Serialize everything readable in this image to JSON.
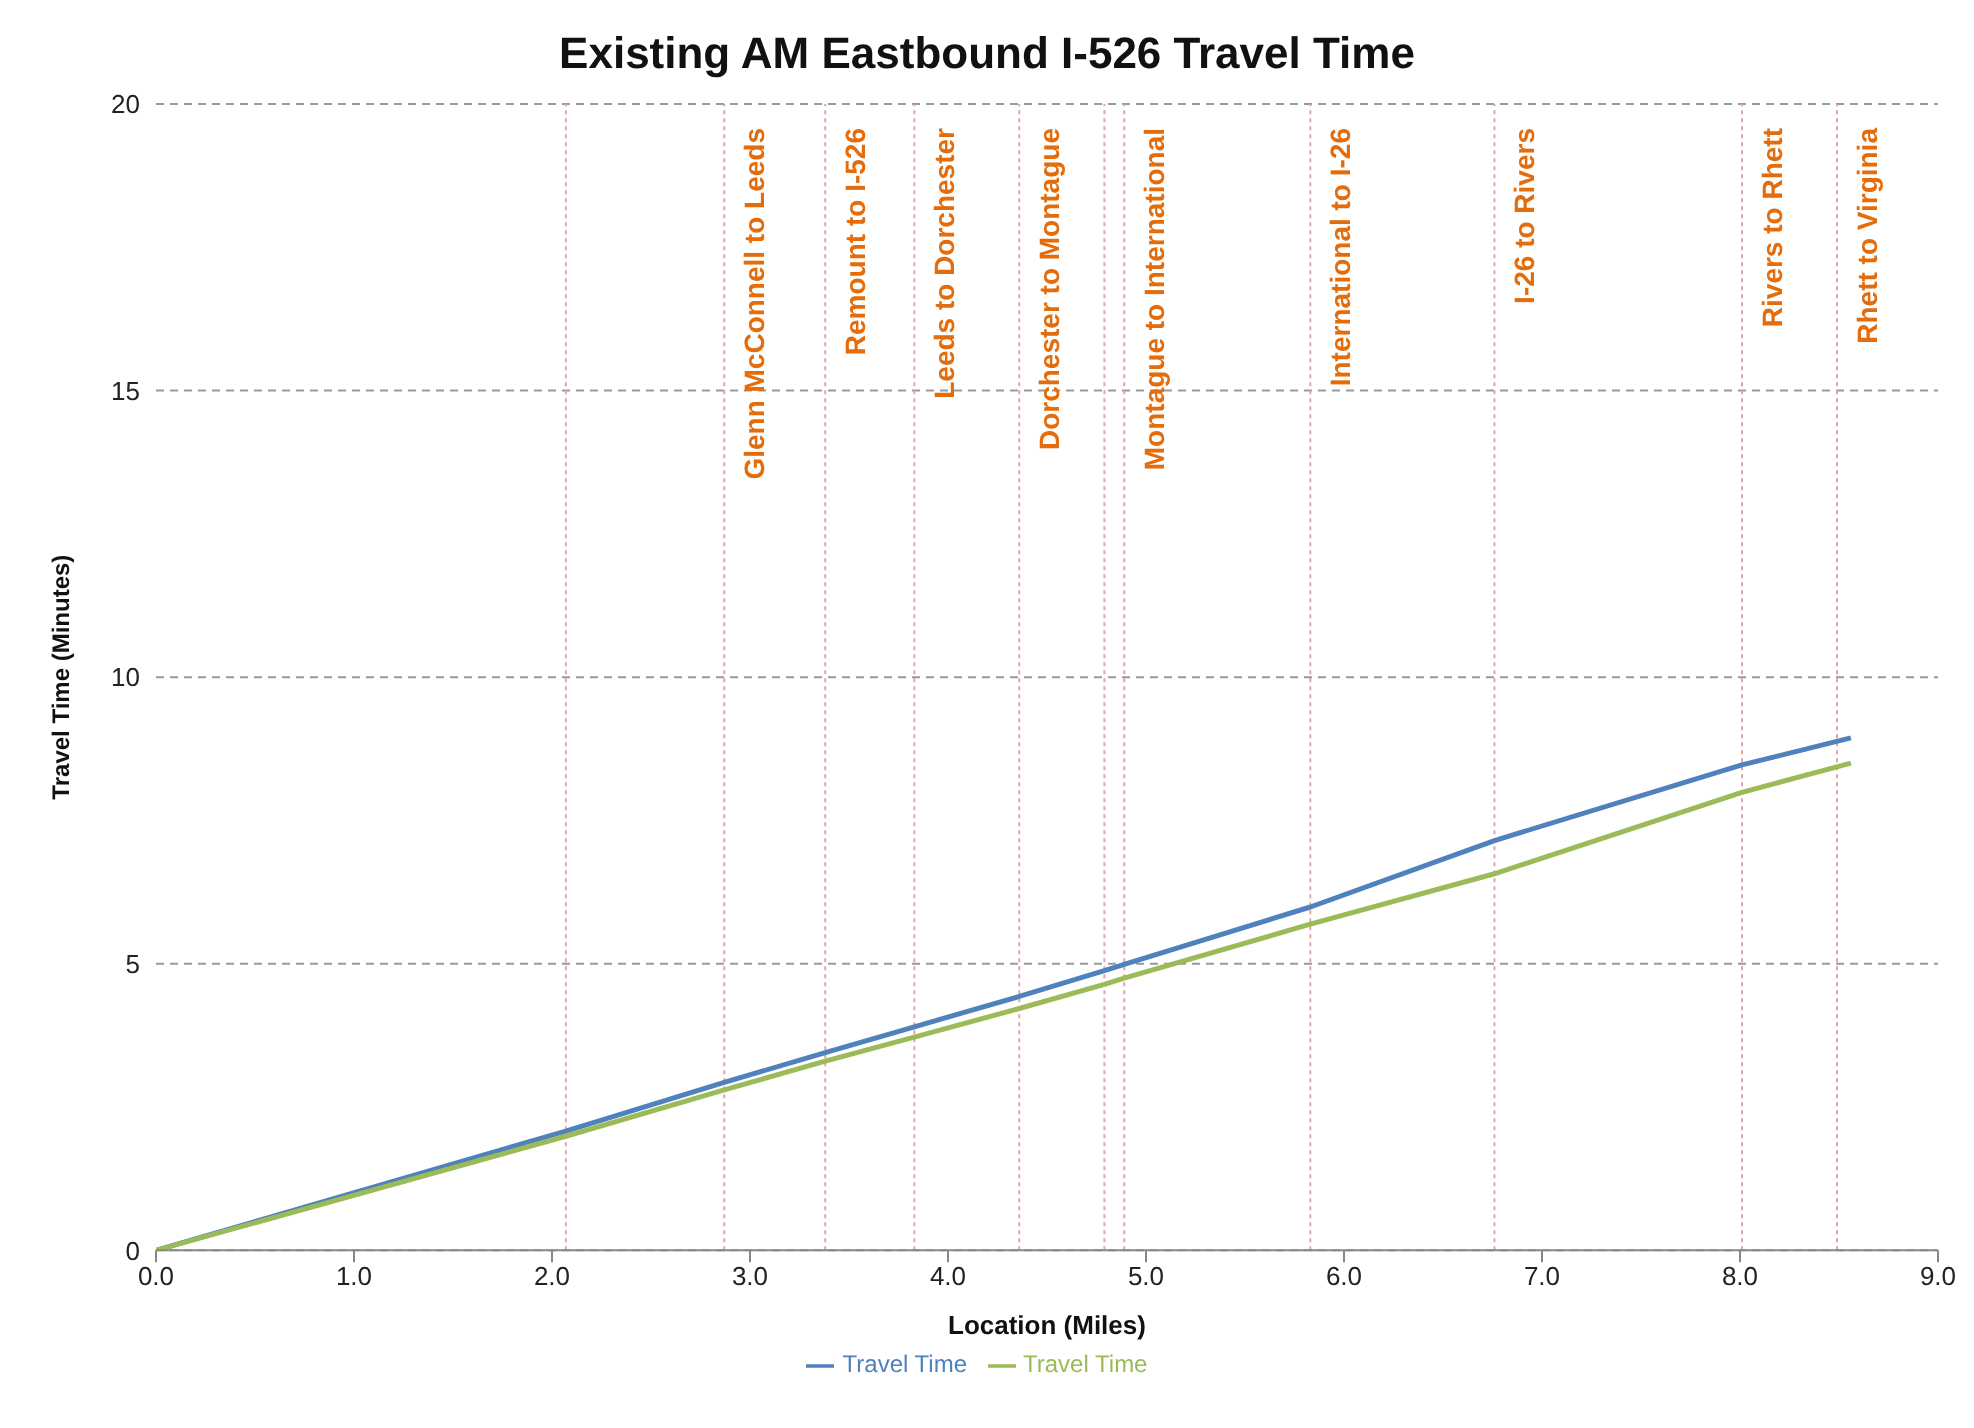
{
  "chart_data": {
    "type": "line",
    "title": "Existing AM Eastbound I-526 Travel Time",
    "xlabel": "Location (Miles)",
    "ylabel": "Travel Time (Minutes)",
    "xlim": [
      0,
      9
    ],
    "xticks": [
      {
        "value": 0,
        "label": "0.0"
      },
      {
        "value": 1,
        "label": "1.0"
      },
      {
        "value": 2,
        "label": "2.0"
      },
      {
        "value": 3,
        "label": "3.0"
      },
      {
        "value": 4,
        "label": "4.0"
      },
      {
        "value": 5,
        "label": "5.0"
      },
      {
        "value": 6,
        "label": "6.0"
      },
      {
        "value": 7,
        "label": "7.0"
      },
      {
        "value": 8,
        "label": "8.0"
      },
      {
        "value": 9,
        "label": "9.0"
      }
    ],
    "ylim": [
      0,
      20
    ],
    "yticks": [
      0,
      5,
      10,
      15,
      20
    ],
    "grid": "y",
    "legend": "bottom",
    "marker": "none",
    "line_style": "solid",
    "x": [
      0,
      2.07,
      2.87,
      3.38,
      3.83,
      4.36,
      4.79,
      4.89,
      5.83,
      6.76,
      8.01,
      8.56
    ],
    "series": [
      {
        "name": "Travel Time",
        "color": "#4f81bd",
        "values": [
          0,
          2.08,
          2.93,
          3.45,
          3.9,
          4.43,
          4.88,
          4.99,
          5.99,
          7.15,
          8.47,
          8.94
        ]
      },
      {
        "name": "Travel Time",
        "color": "#9bbb59",
        "values": [
          0,
          1.99,
          2.8,
          3.3,
          3.72,
          4.22,
          4.64,
          4.75,
          5.69,
          6.57,
          7.99,
          8.5
        ]
      }
    ],
    "ref_lines": [
      {
        "axis": "x",
        "value": 2.07,
        "label": null,
        "color": "#e6a3a3",
        "line_style": "dotted"
      },
      {
        "axis": "x",
        "value": 2.87,
        "label": "Glenn McConnell to Leeds",
        "color": "#e6a3a3",
        "line_style": "dotted"
      },
      {
        "axis": "x",
        "value": 3.38,
        "label": "Remount to I-526",
        "color": "#e6a3a3",
        "line_style": "dotted"
      },
      {
        "axis": "x",
        "value": 3.83,
        "label": "Leeds to Dorchester",
        "color": "#e6a3a3",
        "line_style": "dotted"
      },
      {
        "axis": "x",
        "value": 4.36,
        "label": "Dorchester to Montague",
        "color": "#e6a3a3",
        "line_style": "dotted"
      },
      {
        "axis": "x",
        "value": 4.79,
        "label": null,
        "color": "#e6a3a3",
        "line_style": "dotted"
      },
      {
        "axis": "x",
        "value": 4.89,
        "label": "Montague to International",
        "color": "#e6a3a3",
        "line_style": "dotted"
      },
      {
        "axis": "x",
        "value": 5.83,
        "label": "International to I-26",
        "color": "#e6a3a3",
        "line_style": "dotted"
      },
      {
        "axis": "x",
        "value": 6.76,
        "label": "I-26 to Rivers",
        "color": "#e6a3a3",
        "line_style": "dotted"
      },
      {
        "axis": "x",
        "value": 8.01,
        "label": "Rivers to Rhett",
        "color": "#e6a3a3",
        "line_style": "dotted"
      },
      {
        "axis": "x",
        "value": 8.49,
        "label": "Rhett to Virginia",
        "color": "#e6a3a3",
        "line_style": "dotted"
      }
    ]
  }
}
